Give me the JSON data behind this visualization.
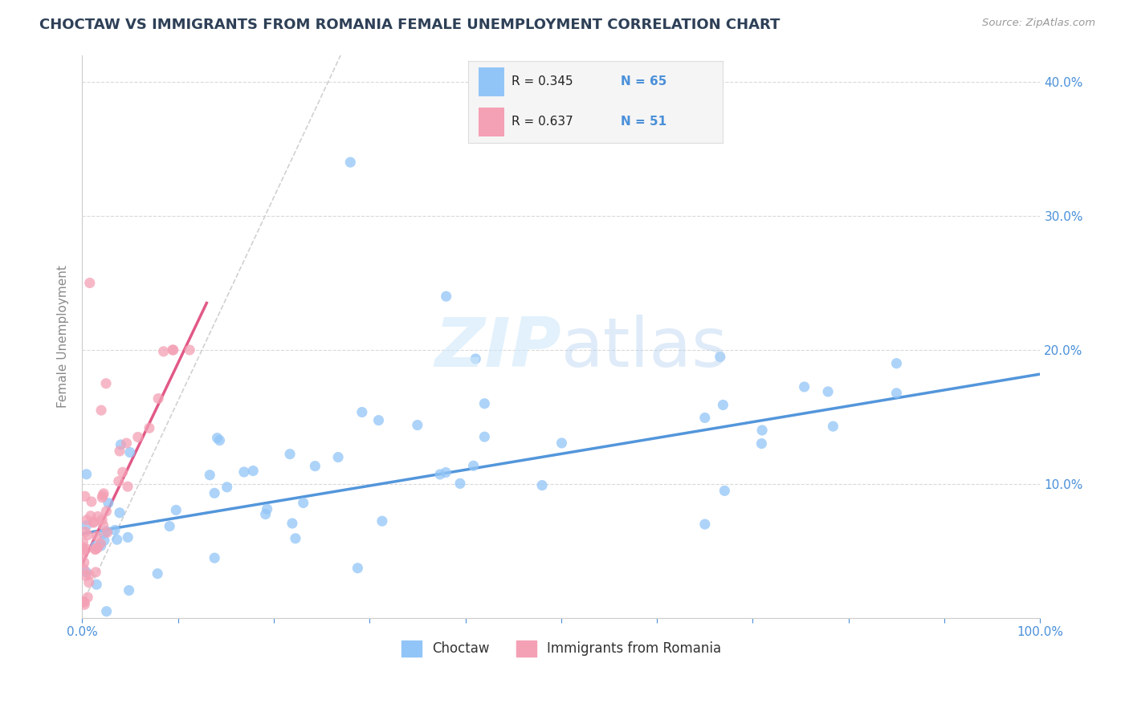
{
  "title": "CHOCTAW VS IMMIGRANTS FROM ROMANIA FEMALE UNEMPLOYMENT CORRELATION CHART",
  "source_text": "Source: ZipAtlas.com",
  "xlabel": "",
  "ylabel": "Female Unemployment",
  "xlim": [
    0,
    1.0
  ],
  "ylim": [
    0,
    0.42
  ],
  "choctaw_color": "#92c5f7",
  "romania_color": "#f4a0b5",
  "choctaw_line_color": "#4a90d9",
  "romania_line_color": "#e05080",
  "choctaw_R": 0.345,
  "choctaw_N": 65,
  "romania_R": 0.637,
  "romania_N": 51,
  "legend_label_choctaw": "Choctaw",
  "legend_label_romania": "Immigrants from Romania",
  "watermark": "ZIPatlas",
  "yticks": [
    0.0,
    0.1,
    0.2,
    0.3,
    0.4
  ],
  "ytick_labels": [
    "",
    "10.0%",
    "20.0%",
    "30.0%",
    "40.0%"
  ],
  "xtick_positions": [
    0.0,
    0.1,
    0.2,
    0.3,
    0.4,
    0.5,
    0.6,
    0.7,
    0.8,
    0.9,
    1.0
  ],
  "xtick_labels": [
    "0.0%",
    "",
    "",
    "",
    "",
    "",
    "",
    "",
    "",
    "",
    "100.0%"
  ],
  "grid_color": "#d0d0d0",
  "background_color": "#ffffff",
  "title_color": "#2e4057",
  "axis_label_color": "#888888",
  "tick_color": "#4a90d9",
  "stat_color": "#4a90d9",
  "legend_box_color": "#f5f5f5",
  "legend_border_color": "#dddddd"
}
